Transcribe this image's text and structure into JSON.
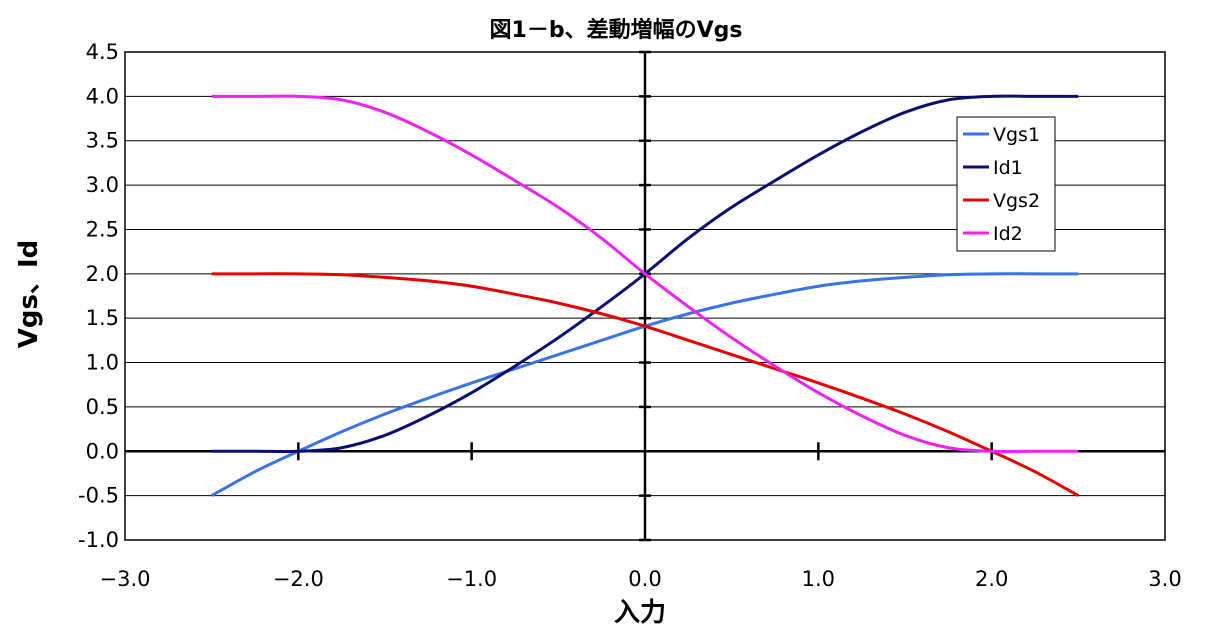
{
  "chart_data": {
    "type": "line",
    "title": "図1－b、差動増幅のVgs",
    "xlabel": "入力",
    "ylabel": "Vgs、Id",
    "xlim": [
      -3.0,
      3.0
    ],
    "ylim": [
      -1.0,
      4.5
    ],
    "xticks": [
      -3.0,
      -2.0,
      -1.0,
      0.0,
      1.0,
      2.0,
      3.0
    ],
    "xtick_labels": [
      "−3.0",
      "−2.0",
      "−1.0",
      "0.0",
      "1.0",
      "2.0",
      "3.0"
    ],
    "yticks": [
      -1.0,
      -0.5,
      0.0,
      0.5,
      1.0,
      1.5,
      2.0,
      2.5,
      3.0,
      3.5,
      4.0,
      4.5
    ],
    "ytick_labels": [
      "-1.0",
      "-0.5",
      "0.0",
      "0.5",
      "1.0",
      "1.5",
      "2.0",
      "2.5",
      "3.0",
      "3.5",
      "4.0",
      "4.5"
    ],
    "grid": "horizontal",
    "legend_position": "top-right",
    "series": [
      {
        "name": "Vgs1",
        "color": "#3a72e8",
        "x": [
          -2.5,
          -2.25,
          -2.0,
          -1.75,
          -1.5,
          -1.25,
          -1.0,
          -0.75,
          -0.5,
          -0.25,
          0.0,
          0.25,
          0.5,
          0.75,
          1.0,
          1.25,
          1.5,
          1.75,
          2.0,
          2.25,
          2.5
        ],
        "y": [
          -0.5,
          -0.23,
          0.0,
          0.22,
          0.42,
          0.6,
          0.77,
          0.93,
          1.09,
          1.25,
          1.41,
          1.55,
          1.67,
          1.77,
          1.86,
          1.92,
          1.96,
          1.99,
          2.0,
          2.0,
          2.0
        ]
      },
      {
        "name": "Id1",
        "color": "#0a0f70",
        "x": [
          -2.5,
          -2.25,
          -2.0,
          -1.75,
          -1.5,
          -1.25,
          -1.0,
          -0.75,
          -0.5,
          -0.25,
          0.0,
          0.25,
          0.5,
          0.75,
          1.0,
          1.25,
          1.5,
          1.75,
          2.0,
          2.25,
          2.5
        ],
        "y": [
          0.0,
          0.0,
          0.0,
          0.04,
          0.18,
          0.4,
          0.66,
          0.96,
          1.28,
          1.63,
          2.0,
          2.4,
          2.75,
          3.05,
          3.34,
          3.6,
          3.82,
          3.96,
          4.0,
          4.0,
          4.0
        ]
      },
      {
        "name": "Vgs2",
        "color": "#e80000",
        "x": [
          -2.5,
          -2.25,
          -2.0,
          -1.75,
          -1.5,
          -1.25,
          -1.0,
          -0.75,
          -0.5,
          -0.25,
          0.0,
          0.25,
          0.5,
          0.75,
          1.0,
          1.25,
          1.5,
          1.75,
          2.0,
          2.25,
          2.5
        ],
        "y": [
          2.0,
          2.0,
          2.0,
          1.99,
          1.96,
          1.92,
          1.86,
          1.77,
          1.67,
          1.55,
          1.41,
          1.25,
          1.09,
          0.93,
          0.77,
          0.6,
          0.42,
          0.22,
          0.0,
          -0.23,
          -0.5
        ]
      },
      {
        "name": "Id2",
        "color": "#ee22ee",
        "x": [
          -2.5,
          -2.25,
          -2.0,
          -1.75,
          -1.5,
          -1.25,
          -1.0,
          -0.75,
          -0.5,
          -0.25,
          0.0,
          0.25,
          0.5,
          0.75,
          1.0,
          1.25,
          1.5,
          1.75,
          2.0,
          2.25,
          2.5
        ],
        "y": [
          4.0,
          4.0,
          4.0,
          3.96,
          3.82,
          3.6,
          3.34,
          3.05,
          2.75,
          2.4,
          2.0,
          1.63,
          1.28,
          0.96,
          0.66,
          0.4,
          0.18,
          0.04,
          0.0,
          0.0,
          0.0
        ]
      }
    ]
  }
}
